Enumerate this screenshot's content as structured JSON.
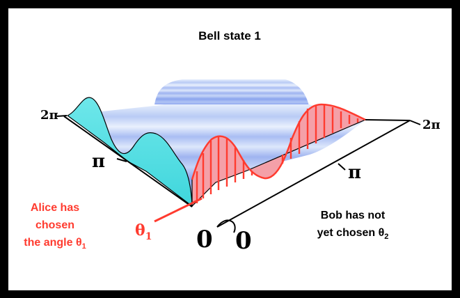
{
  "title": "Bell state 1",
  "axis_labels": {
    "left_2pi": "2π",
    "left_pi": "π",
    "left_zero": "0",
    "right_2pi": "2π",
    "right_pi": "π",
    "right_zero": "0"
  },
  "alice": {
    "line1": "Alice has",
    "line2": "chosen",
    "line3_prefix": "the angle θ",
    "line3_sub": "1",
    "theta_label": "θ",
    "theta_sub": "1"
  },
  "bob": {
    "line1": "Bob has not",
    "line2_prefix": "yet chosen θ",
    "line2_sub": "2"
  },
  "colors": {
    "alice_red": "#ff3b2f",
    "alice_fill": "#f4a0a8",
    "surface_cyan": "#58dde2",
    "surface_blue": "#7f99ee",
    "frame": "#000000"
  }
}
